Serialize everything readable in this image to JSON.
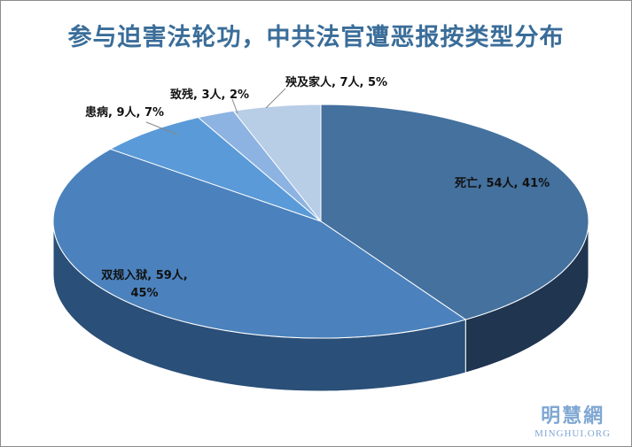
{
  "chart_data": {
    "type": "pie3d",
    "title": "参与迫害法轮功，中共法官遭恶报按类型分布",
    "labels": [
      "死亡, 54人, 41%",
      "双规入狱, 59人, 45%",
      "患病, 9人, 7%",
      "致残, 3人, 2%",
      "殃及家人, 7人, 5%"
    ],
    "values": [
      54,
      59,
      9,
      3,
      7
    ],
    "colors": [
      "#44719e",
      "#4b82bd",
      "#5a9ad8",
      "#8db3e2",
      "#b8cde6"
    ],
    "side_colors": [
      "#1f3550",
      "#2a4f78",
      "#3b6ea0",
      "#5f86b5",
      "#8aa4c4"
    ]
  },
  "logo": {
    "name": "明慧網",
    "site": "MINGHUI.ORG"
  }
}
